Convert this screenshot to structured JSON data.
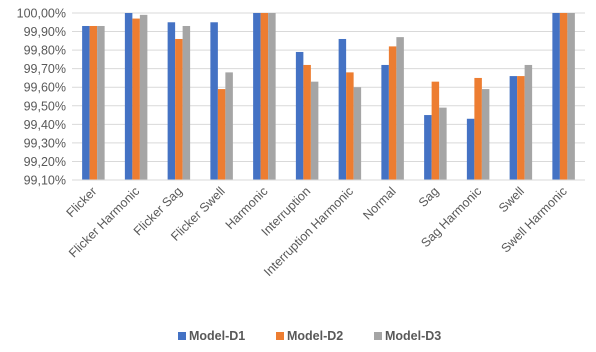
{
  "chart_data": {
    "type": "bar",
    "title": "",
    "xlabel": "",
    "ylabel": "",
    "ylim": [
      99.1,
      100.0
    ],
    "y_ticks": [
      "99,10%",
      "99,20%",
      "99,30%",
      "99,40%",
      "99,50%",
      "99,60%",
      "99,70%",
      "99,80%",
      "99,90%",
      "100,00%"
    ],
    "y_tick_values": [
      99.1,
      99.2,
      99.3,
      99.4,
      99.5,
      99.6,
      99.7,
      99.8,
      99.9,
      100.0
    ],
    "grid": true,
    "legend_position": "bottom",
    "categories": [
      "Flicker",
      "Flicker Harmonic",
      "Flicker Sag",
      "Flicker Swell",
      "Harmonic",
      "Interruption",
      "Interruption Harmonic",
      "Normal",
      "Sag",
      "Sag Harmonic",
      "Swell",
      "Swell Harmonic"
    ],
    "series": [
      {
        "name": "Model-D1",
        "color": "#4472C4",
        "values": [
          99.93,
          100.0,
          99.95,
          99.95,
          100.0,
          99.79,
          99.86,
          99.72,
          99.45,
          99.43,
          99.66,
          100.0
        ]
      },
      {
        "name": "Model-D2",
        "color": "#ED7D31",
        "values": [
          99.93,
          99.97,
          99.86,
          99.59,
          100.0,
          99.72,
          99.68,
          99.82,
          99.63,
          99.65,
          99.66,
          100.0
        ]
      },
      {
        "name": "Model-D3",
        "color": "#A5A5A5",
        "values": [
          99.93,
          99.99,
          99.93,
          99.68,
          100.0,
          99.63,
          99.6,
          99.87,
          99.49,
          99.59,
          99.72,
          100.0
        ]
      }
    ]
  }
}
